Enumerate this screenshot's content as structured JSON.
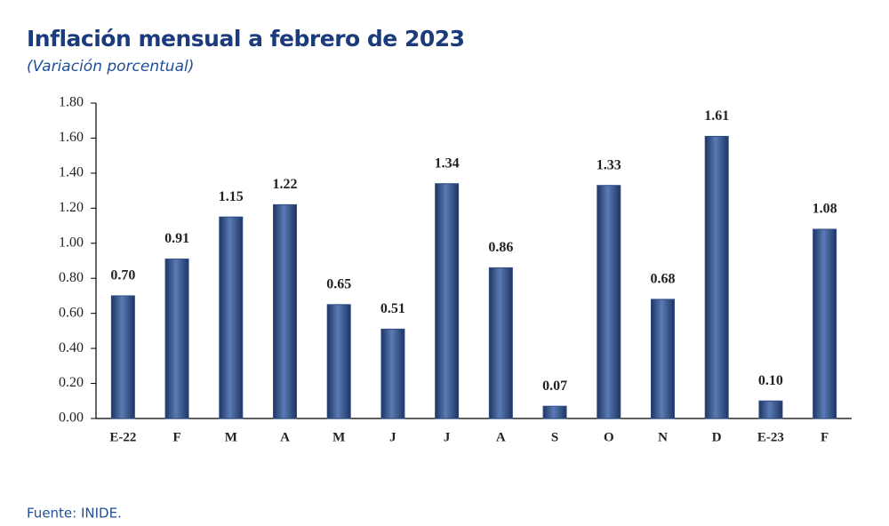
{
  "chart_data": {
    "type": "bar",
    "title": "Inflación mensual a febrero de 2023",
    "subtitle": "(Variación porcentual)",
    "source": "Fuente: INIDE.",
    "categories": [
      "E-22",
      "F",
      "M",
      "A",
      "M",
      "J",
      "J",
      "A",
      "S",
      "O",
      "N",
      "D",
      "E-23",
      "F"
    ],
    "values": [
      0.7,
      0.91,
      1.15,
      1.22,
      0.65,
      0.51,
      1.34,
      0.86,
      0.07,
      1.33,
      0.68,
      1.61,
      0.1,
      1.08
    ],
    "value_labels": [
      "0.70",
      "0.91",
      "1.15",
      "1.22",
      "0.65",
      "0.51",
      "1.34",
      "0.86",
      "0.07",
      "1.33",
      "0.68",
      "1.61",
      "0.10",
      "1.08"
    ],
    "color": "#2f4d82",
    "ylim": [
      0,
      1.8
    ],
    "yticks": [
      {
        "value": 0,
        "label": "0.00"
      },
      {
        "value": 0.2,
        "label": "0.20"
      },
      {
        "value": 0.4,
        "label": "0.40"
      },
      {
        "value": 0.6,
        "label": "0.60"
      },
      {
        "value": 0.8,
        "label": "0.80"
      },
      {
        "value": 1,
        "label": "1.00"
      },
      {
        "value": 1.2,
        "label": "1.20"
      },
      {
        "value": 1.4,
        "label": "1.40"
      },
      {
        "value": 1.6,
        "label": "1.60"
      },
      {
        "value": 1.8,
        "label": "1.80"
      }
    ],
    "grid": false
  }
}
